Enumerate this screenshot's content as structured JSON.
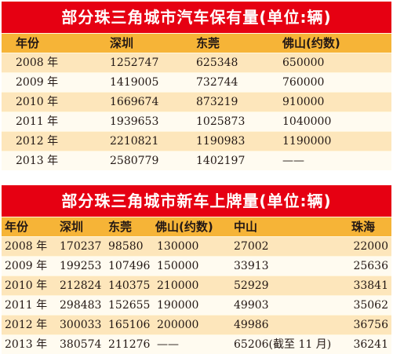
{
  "table1": {
    "title": "部分珠三角城市汽车保有量(单位:辆)",
    "headers": [
      "年份",
      "深圳",
      "东莞",
      "佛山(约数)"
    ],
    "rows": [
      [
        "2008 年",
        "1252747",
        "625348",
        "650000"
      ],
      [
        "2009 年",
        "1419005",
        "732744",
        "760000"
      ],
      [
        "2010 年",
        "1669674",
        "873219",
        "910000"
      ],
      [
        "2011 年",
        "1939653",
        "1025873",
        "1040000"
      ],
      [
        "2012 年",
        "2210821",
        "1190983",
        "1190000"
      ],
      [
        "2013 年",
        "2580779",
        "1402197",
        "——"
      ]
    ]
  },
  "table2": {
    "title": "部分珠三角城市新车上牌量(单位:辆)",
    "headers": [
      "年份",
      "深圳",
      "东莞",
      "佛山(约数)",
      "中山",
      "珠海"
    ],
    "rows": [
      [
        "2008 年",
        "170237",
        "98580",
        "130000",
        "27002",
        "22000"
      ],
      [
        "2009 年",
        "199253",
        "107496",
        "150000",
        "33913",
        "25636"
      ],
      [
        "2010 年",
        "212824",
        "140375",
        "210000",
        "52929",
        "33841"
      ],
      [
        "2011 年",
        "298483",
        "152655",
        "190000",
        "49903",
        "35062"
      ],
      [
        "2012 年",
        "300033",
        "165106",
        "200000",
        "49986",
        "36756"
      ],
      [
        "2013 年",
        "380574",
        "211276",
        "——",
        "65206(截至 11 月)",
        "36241"
      ]
    ]
  }
}
